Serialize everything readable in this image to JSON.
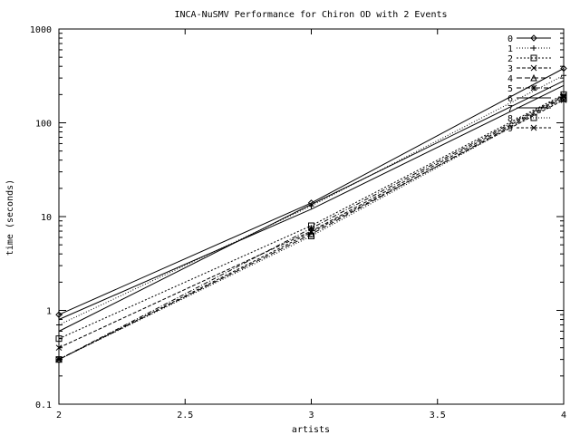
{
  "chart_data": {
    "type": "line",
    "title": "INCA-NuSMV Performance for Chiron OD with 2 Events",
    "xlabel": "artists",
    "ylabel": "time (seconds)",
    "xlim": [
      2,
      4
    ],
    "ylim": [
      0.1,
      1000
    ],
    "y_scale": "log",
    "grid": false,
    "legend_position": "top-right",
    "x_ticks": [
      "2",
      "2.5",
      "3",
      "3.5",
      "4"
    ],
    "x_tick_values": [
      2,
      2.5,
      3,
      3.5,
      4
    ],
    "y_ticks": [
      "0.1",
      "1",
      "10",
      "100",
      "1000"
    ],
    "y_tick_values": [
      0.1,
      1,
      10,
      100,
      1000
    ],
    "x": [
      2,
      3,
      4
    ],
    "series": [
      {
        "name": "0",
        "values": [
          0.9,
          14,
          380
        ],
        "dash": "",
        "marker": "diamond"
      },
      {
        "name": "1",
        "values": [
          0.7,
          13,
          320
        ],
        "dash": "1,2",
        "marker": "plus"
      },
      {
        "name": "2",
        "values": [
          0.5,
          8,
          200
        ],
        "dash": "2,2",
        "marker": "square"
      },
      {
        "name": "3",
        "values": [
          0.4,
          7,
          190
        ],
        "dash": "4,2",
        "marker": "x"
      },
      {
        "name": "4",
        "values": [
          0.3,
          6.5,
          185
        ],
        "dash": "6,3",
        "marker": "triangle"
      },
      {
        "name": "5",
        "values": [
          0.3,
          7.5,
          195
        ],
        "dash": "5,2,1,2",
        "marker": "star"
      },
      {
        "name": "6",
        "values": [
          0.6,
          13.5,
          280
        ],
        "dash": "",
        "marker": "none"
      },
      {
        "name": "7",
        "values": [
          0.8,
          12,
          250
        ],
        "dash": "",
        "marker": "none"
      },
      {
        "name": "8",
        "values": [
          0.3,
          6.2,
          180
        ],
        "dash": "1,2",
        "marker": "square"
      },
      {
        "name": "9",
        "values": [
          0.3,
          6.8,
          175
        ],
        "dash": "3,2",
        "marker": "x"
      }
    ]
  }
}
